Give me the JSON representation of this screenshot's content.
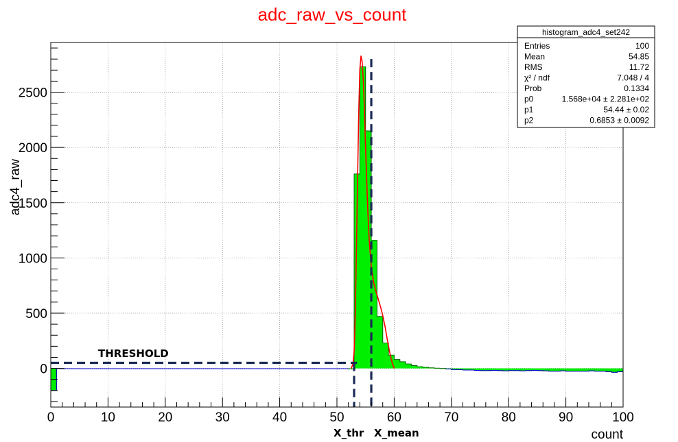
{
  "chart_data": {
    "type": "bar",
    "title": "adc_raw_vs_count",
    "xlabel": "count",
    "ylabel": "adc4_raw",
    "xlim": [
      0,
      100
    ],
    "ylim": [
      -350,
      2950
    ],
    "grid": true,
    "bin_width": 1,
    "x_ticks": [
      0,
      10,
      20,
      30,
      40,
      50,
      60,
      70,
      80,
      90,
      100
    ],
    "y_ticks": [
      0,
      500,
      1000,
      1500,
      2000,
      2500
    ],
    "colors": {
      "fill": "#00ee00",
      "outline": "#006600",
      "fit": "#ff0000",
      "baseline": "#0000cc",
      "title": "#ff0000",
      "annotation": "#1a2a55"
    },
    "bins": {
      "x": [
        0,
        1,
        2,
        3,
        4,
        5,
        6,
        7,
        8,
        9,
        10,
        11,
        12,
        13,
        14,
        15,
        16,
        17,
        18,
        19,
        20,
        21,
        22,
        23,
        24,
        25,
        26,
        27,
        28,
        29,
        30,
        31,
        32,
        33,
        34,
        35,
        36,
        37,
        38,
        39,
        40,
        41,
        42,
        43,
        44,
        45,
        46,
        47,
        48,
        49,
        50,
        51,
        52,
        53,
        54,
        55,
        56,
        57,
        58,
        59,
        60,
        61,
        62,
        63,
        64,
        65,
        66,
        67,
        68,
        69,
        70,
        71,
        72,
        73,
        74,
        75,
        76,
        77,
        78,
        79,
        80,
        81,
        82,
        83,
        84,
        85,
        86,
        87,
        88,
        89,
        90,
        91,
        92,
        93,
        94,
        95,
        96,
        97,
        98,
        99
      ],
      "y": [
        -200,
        -3,
        -3,
        -3,
        -3,
        -3,
        -3,
        -3,
        -3,
        -3,
        -3,
        -3,
        -3,
        -3,
        -3,
        -3,
        -3,
        -3,
        -3,
        -3,
        -3,
        -3,
        -3,
        -3,
        -3,
        -3,
        -3,
        -3,
        -3,
        -3,
        -3,
        -3,
        -3,
        -3,
        -3,
        -3,
        -3,
        -3,
        -3,
        -3,
        -3,
        -3,
        -3,
        -3,
        -3,
        -3,
        -3,
        -3,
        -3,
        -3,
        -3,
        -3,
        -5,
        1760,
        2730,
        2150,
        1160,
        470,
        230,
        120,
        80,
        60,
        40,
        25,
        15,
        10,
        5,
        2,
        0,
        -5,
        -10,
        -12,
        -15,
        -15,
        -18,
        -20,
        -20,
        -18,
        -20,
        -22,
        -20,
        -20,
        -22,
        -20,
        -18,
        -20,
        -22,
        -25,
        -25,
        -22,
        -25,
        -25,
        -25,
        -25,
        -22,
        -25,
        -25,
        -30,
        -35,
        -30
      ]
    },
    "fit_curve": {
      "x": [
        52.5,
        52.8,
        53.0,
        53.2,
        53.4,
        53.6,
        53.8,
        54.0,
        54.2,
        54.4,
        54.6,
        54.8,
        55.0,
        55.2,
        55.4,
        55.6,
        55.8,
        56.0,
        56.4,
        56.8,
        57.2,
        57.6,
        58.0,
        58.4,
        58.8,
        59.2,
        59.6,
        60.0
      ],
      "y": [
        0,
        40,
        150,
        480,
        1050,
        1700,
        2300,
        2700,
        2830,
        2780,
        2620,
        2350,
        2000,
        1700,
        1420,
        1200,
        1050,
        920,
        780,
        700,
        630,
        560,
        480,
        380,
        260,
        150,
        60,
        0
      ]
    },
    "threshold_level": 50,
    "x_thr": 53,
    "x_mean": 56,
    "annotations": {
      "threshold": "THRESHOLD",
      "x_thr": "X_thr",
      "x_mean": "X_mean"
    },
    "stats_box": {
      "title": "histogram_adc4_set242",
      "rows": [
        {
          "label": "Entries",
          "value": "100"
        },
        {
          "label": "Mean",
          "value": "54.85"
        },
        {
          "label": "RMS",
          "value": "11.72"
        },
        {
          "label": "χ² / ndf",
          "value": "7.048 / 4"
        },
        {
          "label": "Prob",
          "value": "0.1334"
        },
        {
          "label": "p0",
          "value": "1.568e+04 ± 2.281e+02"
        },
        {
          "label": "p1",
          "value": "54.44 ± 0.02"
        },
        {
          "label": "p2",
          "value": "0.6853 ± 0.0092"
        }
      ]
    }
  }
}
